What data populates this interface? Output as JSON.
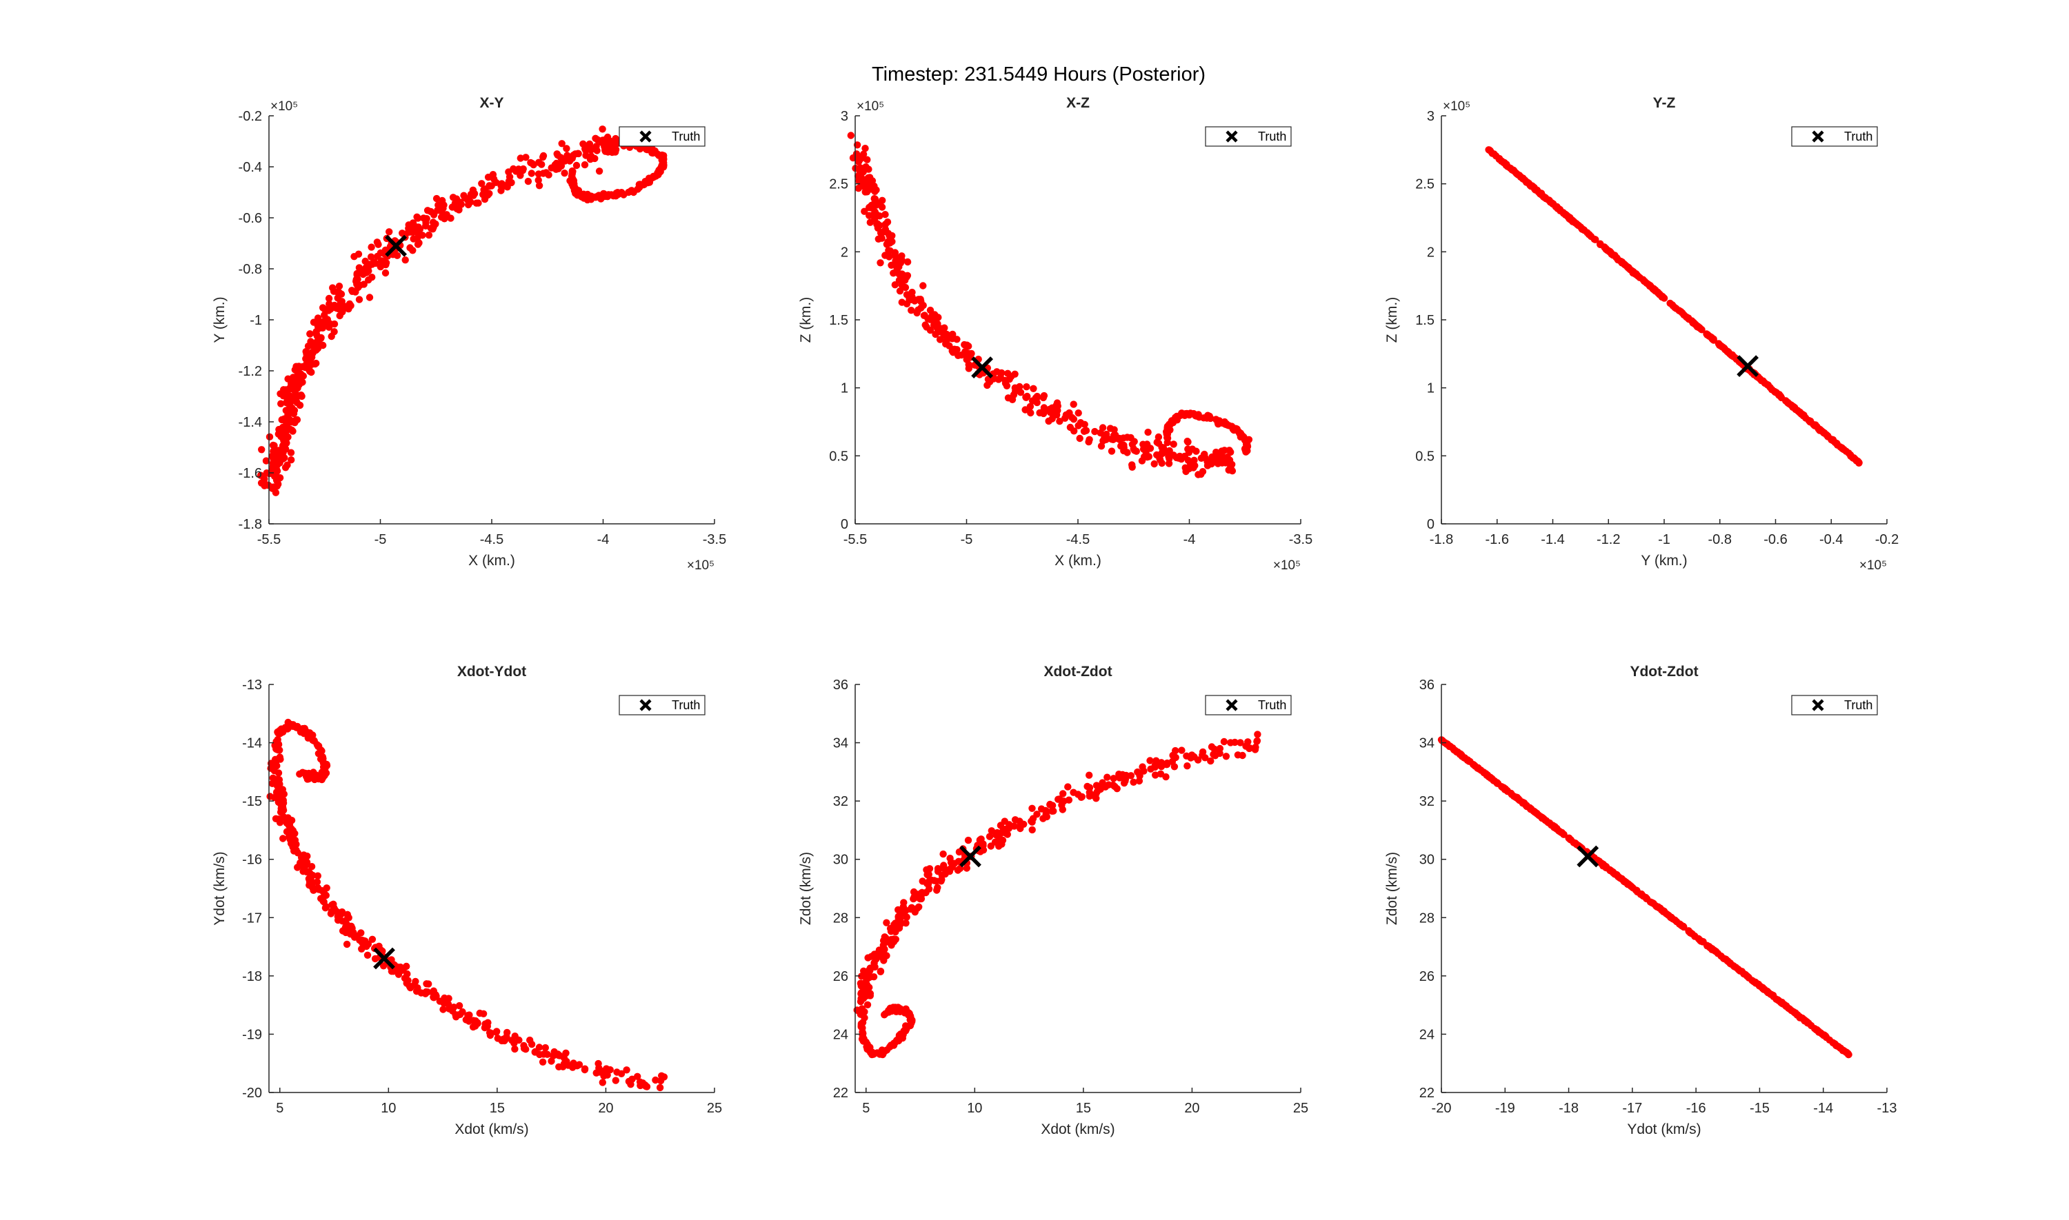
{
  "figure": {
    "suptitle": "Timestep: 231.5449 Hours (Posterior)"
  },
  "colors": {
    "particles": "#ff0000",
    "truth": "#000000",
    "axis": "#262626"
  },
  "chart_data": [
    {
      "type": "scatter",
      "title": "X-Y",
      "xlabel": "X (km.)",
      "ylabel": "Y (km.)",
      "xlim": [
        -550000,
        -350000
      ],
      "ylim": [
        -180000,
        -20000
      ],
      "xticks": [
        -550000,
        -500000,
        -450000,
        -400000,
        -350000
      ],
      "xticklabels": [
        "-5.5",
        "-5",
        "-4.5",
        "-4",
        "-3.5"
      ],
      "yticks": [
        -180000,
        -160000,
        -140000,
        -120000,
        -100000,
        -80000,
        -60000,
        -40000,
        -20000
      ],
      "yticklabels": [
        "-1.8",
        "-1.6",
        "-1.4",
        "-1.2",
        "-1",
        "-0.8",
        "-0.6",
        "-0.4",
        "-0.2"
      ],
      "x_exponent": "×10⁵",
      "y_exponent": "×10⁵",
      "legend": {
        "label": "Truth",
        "position": "top-right"
      },
      "truth": [
        -493000,
        -71000
      ],
      "curve": [
        [
          -549000,
          -165000
        ],
        [
          -548000,
          -158000
        ],
        [
          -545000,
          -153000
        ],
        [
          -543000,
          -145000
        ],
        [
          -541000,
          -138000
        ],
        [
          -539000,
          -130000
        ],
        [
          -536000,
          -122000
        ],
        [
          -532000,
          -114000
        ],
        [
          -527000,
          -105000
        ],
        [
          -521000,
          -96000
        ],
        [
          -514000,
          -88000
        ],
        [
          -505000,
          -80000
        ],
        [
          -496000,
          -73000
        ],
        [
          -486000,
          -66000
        ],
        [
          -474000,
          -59000
        ],
        [
          -460000,
          -52000
        ],
        [
          -444000,
          -45000
        ],
        [
          -426000,
          -39000
        ],
        [
          -410000,
          -34000
        ],
        [
          -395000,
          -31000
        ],
        [
          -398000,
          -30000
        ]
      ],
      "curve_spread": 3000,
      "hook": [
        [
          -401000,
          -30000
        ],
        [
          -380000,
          -33000
        ],
        [
          -373000,
          -36000
        ],
        [
          -373000,
          -40000
        ],
        [
          -378000,
          -45000
        ],
        [
          -386000,
          -49000
        ],
        [
          -395000,
          -51000
        ],
        [
          -405000,
          -52000
        ],
        [
          -411000,
          -51000
        ],
        [
          -413000,
          -48000
        ],
        [
          -414000,
          -42000
        ]
      ],
      "hook_spread": 600
    },
    {
      "type": "scatter",
      "title": "X-Z",
      "xlabel": "X (km.)",
      "ylabel": "Z (km.)",
      "xlim": [
        -550000,
        -350000
      ],
      "ylim": [
        0,
        300000
      ],
      "xticks": [
        -550000,
        -500000,
        -450000,
        -400000,
        -350000
      ],
      "xticklabels": [
        "-5.5",
        "-5",
        "-4.5",
        "-4",
        "-3.5"
      ],
      "yticks": [
        0,
        50000,
        100000,
        150000,
        200000,
        250000,
        300000
      ],
      "yticklabels": [
        "0",
        "0.5",
        "1",
        "1.5",
        "2",
        "2.5",
        "3"
      ],
      "x_exponent": "×10⁵",
      "y_exponent": "×10⁵",
      "legend": {
        "label": "Truth",
        "position": "top-right"
      },
      "truth": [
        -493000,
        115000
      ],
      "curve": [
        [
          -549000,
          275000
        ],
        [
          -546000,
          255000
        ],
        [
          -542000,
          235000
        ],
        [
          -537000,
          212000
        ],
        [
          -531000,
          190000
        ],
        [
          -524000,
          168000
        ],
        [
          -515000,
          148000
        ],
        [
          -504000,
          130000
        ],
        [
          -492000,
          113000
        ],
        [
          -478000,
          98000
        ],
        [
          -462000,
          84000
        ],
        [
          -445000,
          70000
        ],
        [
          -430000,
          59000
        ],
        [
          -414000,
          52000
        ],
        [
          -402000,
          48000
        ],
        [
          -390000,
          46000
        ],
        [
          -380000,
          48000
        ]
      ],
      "curve_spread": 5000,
      "hook": [
        [
          -410000,
          62000
        ],
        [
          -409000,
          75000
        ],
        [
          -403000,
          81000
        ],
        [
          -395000,
          80000
        ],
        [
          -386000,
          75000
        ],
        [
          -378000,
          68000
        ],
        [
          -374000,
          60000
        ],
        [
          -375000,
          53000
        ]
      ],
      "hook_spread": 800
    },
    {
      "type": "scatter",
      "title": "Y-Z",
      "xlabel": "Y (km.)",
      "ylabel": "Z (km.)",
      "xlim": [
        -180000,
        -20000
      ],
      "ylim": [
        0,
        300000
      ],
      "xticks": [
        -180000,
        -160000,
        -140000,
        -120000,
        -100000,
        -80000,
        -60000,
        -40000,
        -20000
      ],
      "xticklabels": [
        "-1.8",
        "-1.6",
        "-1.4",
        "-1.2",
        "-1",
        "-0.8",
        "-0.6",
        "-0.4",
        "-0.2"
      ],
      "yticks": [
        0,
        50000,
        100000,
        150000,
        200000,
        250000,
        300000
      ],
      "yticklabels": [
        "0",
        "0.5",
        "1",
        "1.5",
        "2",
        "2.5",
        "3"
      ],
      "x_exponent": "×10⁵",
      "y_exponent": "×10⁵",
      "legend": {
        "label": "Truth",
        "position": "top-right"
      },
      "truth": [
        -70000,
        116000
      ],
      "line_from": [
        -163000,
        275000
      ],
      "line_to": [
        -30000,
        45000
      ],
      "line_spread": 300
    },
    {
      "type": "scatter",
      "title": "Xdot-Ydot",
      "xlabel": "Xdot (km/s)",
      "ylabel": "Ydot (km/s)",
      "xlim": [
        4.5,
        25
      ],
      "ylim": [
        -20,
        -13
      ],
      "xticks": [
        5,
        10,
        15,
        20,
        25
      ],
      "xticklabels": [
        "5",
        "10",
        "15",
        "20",
        "25"
      ],
      "yticks": [
        -20,
        -19,
        -18,
        -17,
        -16,
        -15,
        -14,
        -13
      ],
      "yticklabels": [
        "-20",
        "-19",
        "-18",
        "-17",
        "-16",
        "-15",
        "-14",
        "-13"
      ],
      "legend": {
        "label": "Truth",
        "position": "top-right"
      },
      "truth": [
        9.8,
        -17.7
      ],
      "curve": [
        [
          4.8,
          -14.2
        ],
        [
          4.9,
          -14.8
        ],
        [
          5.2,
          -15.3
        ],
        [
          5.7,
          -15.8
        ],
        [
          6.4,
          -16.3
        ],
        [
          7.3,
          -16.8
        ],
        [
          8.4,
          -17.3
        ],
        [
          9.7,
          -17.7
        ],
        [
          11.2,
          -18.15
        ],
        [
          13.0,
          -18.6
        ],
        [
          15.0,
          -19.0
        ],
        [
          17.3,
          -19.35
        ],
        [
          19.8,
          -19.65
        ],
        [
          22.8,
          -19.9
        ]
      ],
      "curve_spread": 0.08,
      "hook": [
        [
          4.8,
          -14.1
        ],
        [
          5.0,
          -13.8
        ],
        [
          5.5,
          -13.7
        ],
        [
          6.2,
          -13.8
        ],
        [
          6.8,
          -14.1
        ],
        [
          7.1,
          -14.4
        ],
        [
          7.0,
          -14.6
        ],
        [
          6.4,
          -14.6
        ],
        [
          5.9,
          -14.5
        ]
      ],
      "hook_spread": 0.03
    },
    {
      "type": "scatter",
      "title": "Xdot-Zdot",
      "xlabel": "Xdot (km/s)",
      "ylabel": "Zdot (km/s)",
      "xlim": [
        4.5,
        25
      ],
      "ylim": [
        22,
        36
      ],
      "xticks": [
        5,
        10,
        15,
        20,
        25
      ],
      "xticklabels": [
        "5",
        "10",
        "15",
        "20",
        "25"
      ],
      "yticks": [
        22,
        24,
        26,
        28,
        30,
        32,
        34,
        36
      ],
      "yticklabels": [
        "22",
        "24",
        "26",
        "28",
        "30",
        "32",
        "34",
        "36"
      ],
      "legend": {
        "label": "Truth",
        "position": "top-right"
      },
      "truth": [
        9.8,
        30.1
      ],
      "curve": [
        [
          4.8,
          24.8
        ],
        [
          5.1,
          25.8
        ],
        [
          5.6,
          26.8
        ],
        [
          6.4,
          27.8
        ],
        [
          7.4,
          28.8
        ],
        [
          8.6,
          29.6
        ],
        [
          9.8,
          30.2
        ],
        [
          11.5,
          31.0
        ],
        [
          13.5,
          31.8
        ],
        [
          15.8,
          32.5
        ],
        [
          18.0,
          33.1
        ],
        [
          20.4,
          33.6
        ],
        [
          23.0,
          34.0
        ]
      ],
      "curve_spread": 0.18,
      "hook": [
        [
          4.8,
          24.4
        ],
        [
          4.9,
          23.8
        ],
        [
          5.3,
          23.3
        ],
        [
          5.9,
          23.4
        ],
        [
          6.6,
          23.9
        ],
        [
          7.1,
          24.5
        ],
        [
          6.9,
          24.8
        ],
        [
          6.3,
          24.9
        ],
        [
          5.8,
          24.7
        ]
      ],
      "hook_spread": 0.05
    },
    {
      "type": "scatter",
      "title": "Ydot-Zdot",
      "xlabel": "Ydot (km/s)",
      "ylabel": "Zdot (km/s)",
      "xlim": [
        -20,
        -13
      ],
      "ylim": [
        22,
        36
      ],
      "xticks": [
        -20,
        -19,
        -18,
        -17,
        -16,
        -15,
        -14,
        -13
      ],
      "xticklabels": [
        "-20",
        "-19",
        "-18",
        "-17",
        "-16",
        "-15",
        "-14",
        "-13"
      ],
      "yticks": [
        22,
        24,
        26,
        28,
        30,
        32,
        34,
        36
      ],
      "yticklabels": [
        "22",
        "24",
        "26",
        "28",
        "30",
        "32",
        "34",
        "36"
      ],
      "legend": {
        "label": "Truth",
        "position": "top-right"
      },
      "truth": [
        -17.7,
        30.1
      ],
      "line_from": [
        -20,
        34.1
      ],
      "line_to": [
        -13.6,
        23.3
      ],
      "line_spread": 0.012
    }
  ]
}
